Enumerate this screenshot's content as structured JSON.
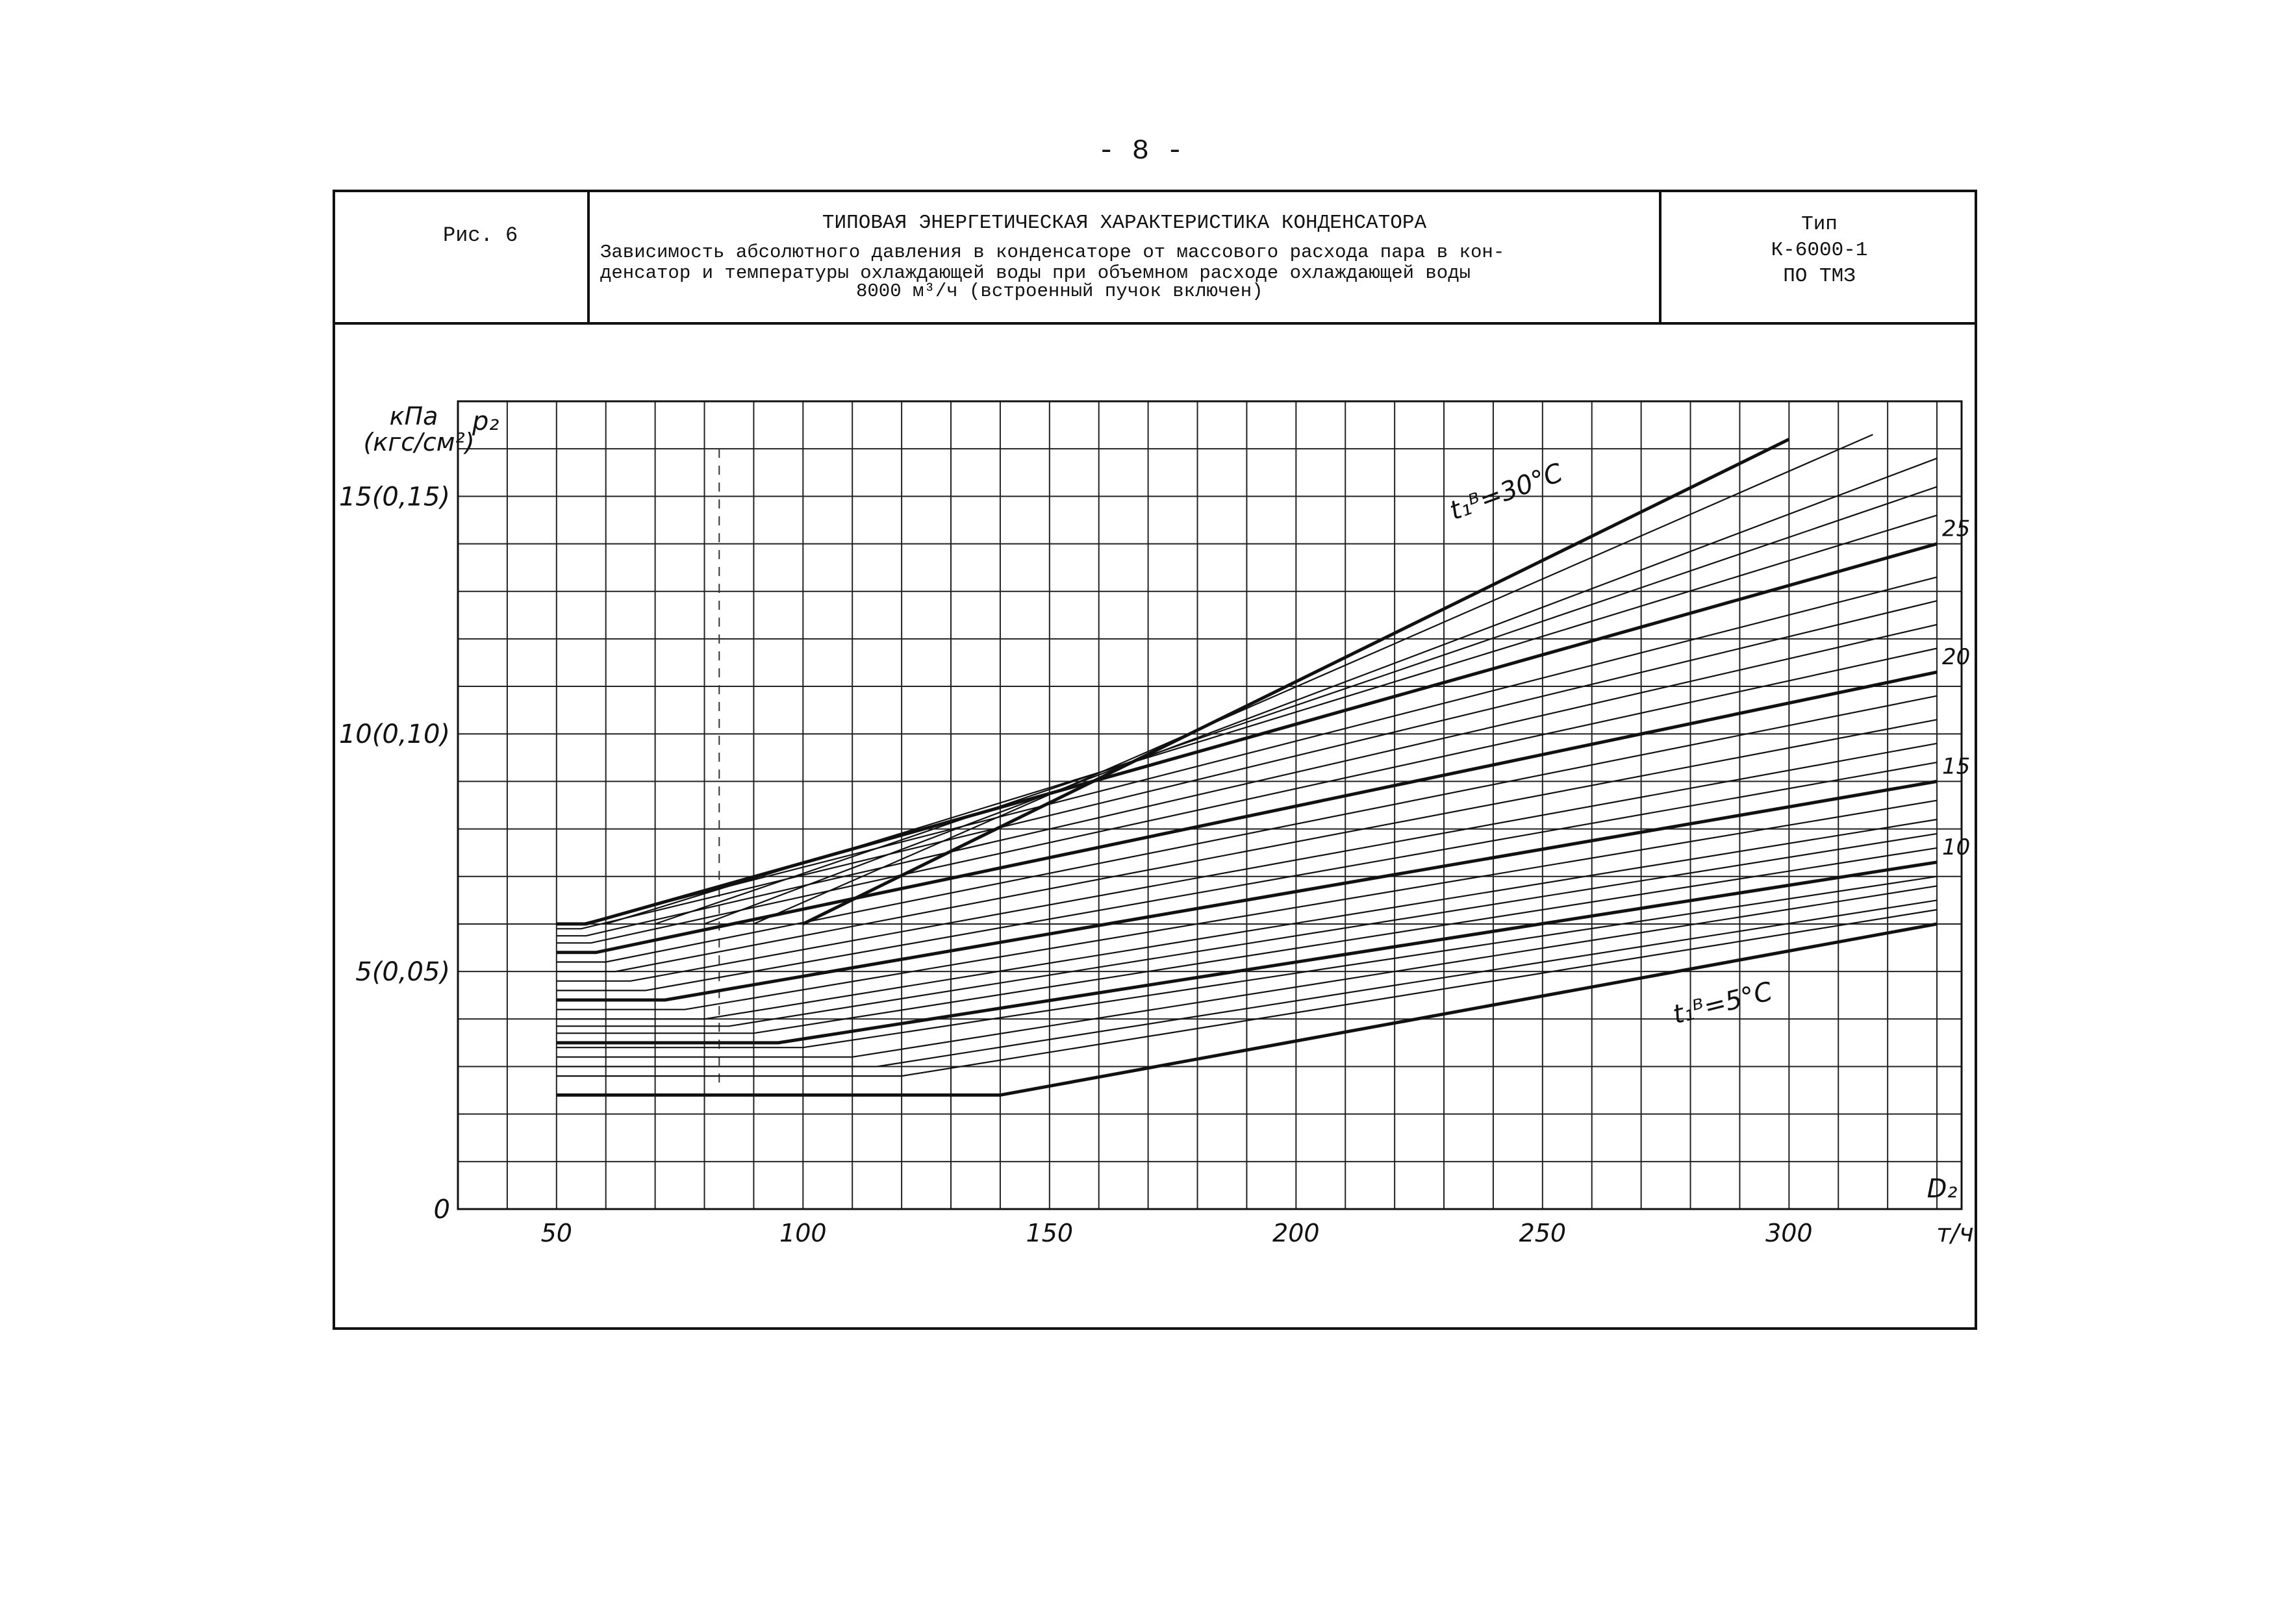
{
  "page": {
    "number": "- 8 -"
  },
  "header": {
    "fig_label": "Рис. 6",
    "title": "ТИПОВАЯ ЭНЕРГЕТИЧЕСКАЯ ХАРАКТЕРИСТИКА КОНДЕНСАТОРА",
    "subtitle_lines": [
      "Зависимость абсолютного давления в конденсаторе от массового расхода пара в кон-",
      "денсатор и температуры охлаждающей воды при объемном расходе охлаждающей воды",
      "8000 м³/ч (встроенный пучок включен)"
    ],
    "type_lines": [
      "Тип",
      "К-6000-1",
      "ПО ТМЗ"
    ]
  },
  "chart_data": {
    "type": "line",
    "title": "",
    "xlabel": "D₂",
    "xunit": "т/ч",
    "ylabel": "p₂",
    "yunit_line1": "кПа",
    "yunit_line2": "(кгс/см²)",
    "xlim": [
      30,
      335
    ],
    "ylim": [
      0,
      17
    ],
    "grid": true,
    "x_ticks": [
      {
        "value": 50,
        "label": "50"
      },
      {
        "value": 100,
        "label": "100"
      },
      {
        "value": 150,
        "label": "150"
      },
      {
        "value": 200,
        "label": "200"
      },
      {
        "value": 250,
        "label": "250"
      },
      {
        "value": 300,
        "label": "300"
      }
    ],
    "y_ticks": [
      {
        "value": 0,
        "label": "0"
      },
      {
        "value": 5,
        "label": "5(0,05)"
      },
      {
        "value": 10,
        "label": "10(0,10)"
      },
      {
        "value": 15,
        "label": "15(0,15)"
      }
    ],
    "curve_label_top": "t₁ᴮ=30°C",
    "curve_label_bottom": "t₁ᴮ=5°C",
    "right_labels": [
      {
        "t": 25,
        "label": "25"
      },
      {
        "t": 20,
        "label": "20"
      },
      {
        "t": 15,
        "label": "15"
      },
      {
        "t": 10,
        "label": "10"
      }
    ],
    "series": [
      {
        "t": 5,
        "values": [
          [
            50,
            2.4
          ],
          [
            140,
            2.4
          ],
          [
            330,
            6.0
          ]
        ]
      },
      {
        "t": 6,
        "values": [
          [
            50,
            2.8
          ],
          [
            120,
            2.8
          ],
          [
            330,
            6.3
          ]
        ]
      },
      {
        "t": 7,
        "values": [
          [
            50,
            3.0
          ],
          [
            115,
            3.0
          ],
          [
            330,
            6.5
          ]
        ]
      },
      {
        "t": 8,
        "values": [
          [
            50,
            3.2
          ],
          [
            110,
            3.2
          ],
          [
            330,
            6.8
          ]
        ]
      },
      {
        "t": 9,
        "values": [
          [
            50,
            3.4
          ],
          [
            100,
            3.4
          ],
          [
            330,
            7.0
          ]
        ]
      },
      {
        "t": 10,
        "values": [
          [
            50,
            3.5
          ],
          [
            95,
            3.5
          ],
          [
            330,
            7.3
          ]
        ]
      },
      {
        "t": 11,
        "values": [
          [
            50,
            3.7
          ],
          [
            90,
            3.7
          ],
          [
            330,
            7.6
          ]
        ]
      },
      {
        "t": 12,
        "values": [
          [
            50,
            3.85
          ],
          [
            85,
            3.85
          ],
          [
            330,
            7.9
          ]
        ]
      },
      {
        "t": 13,
        "values": [
          [
            50,
            4.0
          ],
          [
            80,
            4.0
          ],
          [
            330,
            8.2
          ]
        ]
      },
      {
        "t": 14,
        "values": [
          [
            50,
            4.2
          ],
          [
            76,
            4.2
          ],
          [
            330,
            8.6
          ]
        ]
      },
      {
        "t": 15,
        "values": [
          [
            50,
            4.4
          ],
          [
            72,
            4.4
          ],
          [
            330,
            9.0
          ]
        ]
      },
      {
        "t": 16,
        "values": [
          [
            50,
            4.6
          ],
          [
            68,
            4.6
          ],
          [
            330,
            9.4
          ]
        ]
      },
      {
        "t": 17,
        "values": [
          [
            50,
            4.8
          ],
          [
            65,
            4.8
          ],
          [
            330,
            9.8
          ]
        ]
      },
      {
        "t": 18,
        "values": [
          [
            50,
            5.0
          ],
          [
            62,
            5.0
          ],
          [
            330,
            10.3
          ]
        ]
      },
      {
        "t": 19,
        "values": [
          [
            50,
            5.2
          ],
          [
            60,
            5.2
          ],
          [
            330,
            10.8
          ]
        ]
      },
      {
        "t": 20,
        "values": [
          [
            50,
            5.4
          ],
          [
            58,
            5.4
          ],
          [
            330,
            11.3
          ]
        ]
      },
      {
        "t": 21,
        "values": [
          [
            50,
            5.6
          ],
          [
            57,
            5.6
          ],
          [
            330,
            11.8
          ]
        ]
      },
      {
        "t": 22,
        "values": [
          [
            50,
            5.75
          ],
          [
            56,
            5.75
          ],
          [
            330,
            12.3
          ]
        ]
      },
      {
        "t": 23,
        "values": [
          [
            50,
            5.9
          ],
          [
            55,
            5.9
          ],
          [
            330,
            12.8
          ]
        ]
      },
      {
        "t": 24,
        "values": [
          [
            50,
            6.0
          ],
          [
            55,
            6.0
          ],
          [
            330,
            13.3
          ]
        ]
      },
      {
        "t": 25,
        "values": [
          [
            50,
            6.0
          ],
          [
            56,
            6.0
          ],
          [
            330,
            14.0
          ]
        ]
      },
      {
        "t": 26,
        "values": [
          [
            60,
            6.0
          ],
          [
            330,
            14.6
          ]
        ]
      },
      {
        "t": 27,
        "values": [
          [
            70,
            6.0
          ],
          [
            330,
            15.2
          ]
        ]
      },
      {
        "t": 28,
        "values": [
          [
            80,
            6.0
          ],
          [
            330,
            15.8
          ]
        ]
      },
      {
        "t": 29,
        "values": [
          [
            90,
            6.0
          ],
          [
            317,
            16.3
          ]
        ]
      },
      {
        "t": 30,
        "values": [
          [
            100,
            6.0
          ],
          [
            300,
            16.2
          ]
        ]
      }
    ],
    "bold_series": [
      5,
      10,
      15,
      20,
      25,
      30
    ]
  }
}
